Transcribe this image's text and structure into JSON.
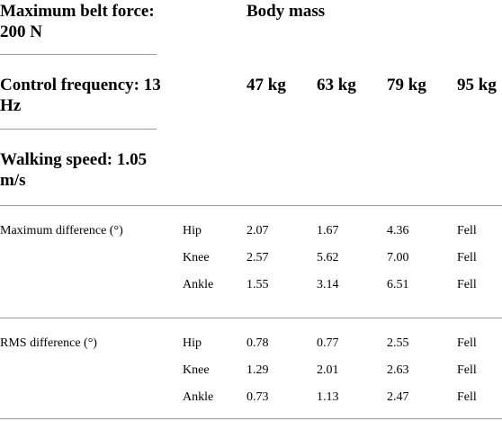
{
  "table": {
    "header": {
      "max_belt_force": "Maximum belt force: 200 N",
      "body_mass": "Body mass",
      "control_frequency": "Control frequency: 13 Hz",
      "walking_speed": "Walking speed: 1.05 m/s",
      "masses": [
        "47 kg",
        "63 kg",
        "79 kg",
        "95 kg"
      ]
    },
    "groups": [
      {
        "label": "Maximum difference (°)",
        "rows": [
          {
            "joint": "Hip",
            "values": [
              "2.07",
              "1.67",
              "4.36",
              "Fell"
            ]
          },
          {
            "joint": "Knee",
            "values": [
              "2.57",
              "5.62",
              "7.00",
              "Fell"
            ]
          },
          {
            "joint": "Ankle",
            "values": [
              "1.55",
              "3.14",
              "6.51",
              "Fell"
            ]
          }
        ]
      },
      {
        "label": "RMS difference (°)",
        "rows": [
          {
            "joint": "Hip",
            "values": [
              "0.78",
              "0.77",
              "2.55",
              "Fell"
            ]
          },
          {
            "joint": "Knee",
            "values": [
              "1.29",
              "2.01",
              "2.63",
              "Fell"
            ]
          },
          {
            "joint": "Ankle",
            "values": [
              "0.73",
              "1.13",
              "2.47",
              "Fell"
            ]
          }
        ]
      }
    ]
  }
}
